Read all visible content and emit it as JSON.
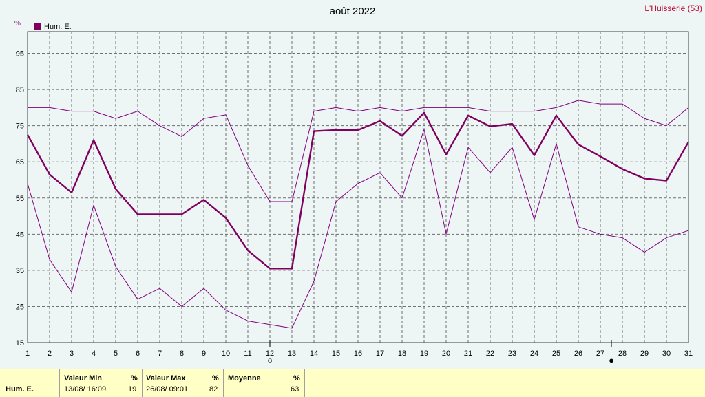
{
  "header": {
    "title": "août 2022",
    "station": "L'Huisserie (53)",
    "unit": "%"
  },
  "chart_data": {
    "type": "line",
    "title": "août 2022",
    "xlabel": "",
    "ylabel": "%",
    "x": [
      1,
      2,
      3,
      4,
      5,
      6,
      7,
      8,
      9,
      10,
      11,
      12,
      13,
      14,
      15,
      16,
      17,
      18,
      19,
      20,
      21,
      22,
      23,
      24,
      25,
      26,
      27,
      28,
      29,
      30,
      31
    ],
    "xlim": [
      1,
      31
    ],
    "ylim": [
      15,
      101
    ],
    "yticks": [
      15,
      25,
      35,
      45,
      55,
      65,
      75,
      85,
      95
    ],
    "grid": true,
    "legend": "top-left",
    "legend_label": "Hum. E.",
    "series": [
      {
        "role": "max",
        "color": "#800080",
        "values": [
          80,
          80,
          79,
          79,
          77,
          79,
          75,
          72,
          77,
          78,
          64,
          54,
          54,
          79,
          80,
          79,
          80,
          79,
          80,
          80,
          80,
          79,
          79,
          79,
          80,
          82,
          81,
          81,
          77,
          75,
          80
        ]
      },
      {
        "role": "mean",
        "color": "#800060",
        "values": [
          72.5,
          61.5,
          56.5,
          71,
          57.5,
          50.5,
          50.5,
          50.5,
          54.5,
          49.5,
          40.5,
          35.5,
          35.5,
          73.5,
          73.8,
          73.8,
          76.3,
          72.2,
          78.6,
          67,
          77.8,
          74.8,
          75.5,
          66.8,
          77.8,
          69.8,
          66.5,
          63,
          60.4,
          59.8,
          70.5
        ]
      },
      {
        "role": "min",
        "color": "#800080",
        "values": [
          59,
          38,
          29,
          53,
          36,
          27,
          30,
          25,
          30,
          24,
          21,
          20,
          19,
          32,
          54,
          59,
          62,
          55,
          74,
          45,
          69,
          62,
          69,
          49,
          70,
          47,
          45,
          44,
          40,
          44,
          46
        ]
      }
    ],
    "moon_phases": [
      {
        "day": 12,
        "phase": "full",
        "symbol": "○"
      },
      {
        "day": 27.5,
        "phase": "new",
        "symbol": "●"
      }
    ]
  },
  "stats": {
    "row_label": "Hum. E.",
    "min_header": "Valeur Min",
    "min_unit": "%",
    "min_when": "13/08/  16:09",
    "min_value": "19",
    "max_header": "Valeur Max",
    "max_unit": "%",
    "max_when": "26/08/  09:01",
    "max_value": "82",
    "mean_header": "Moyenne",
    "mean_unit": "%",
    "mean_value": "63"
  }
}
